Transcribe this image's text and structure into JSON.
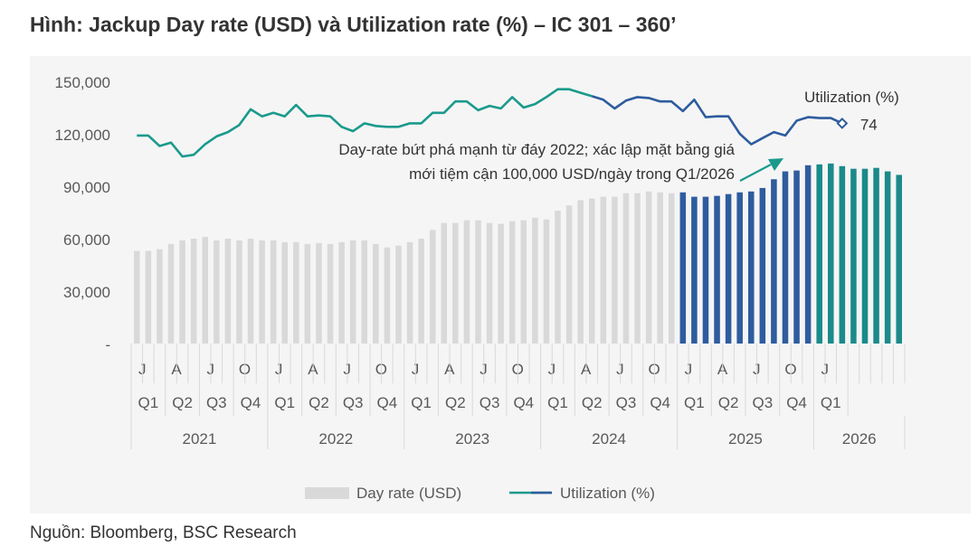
{
  "title": "Hình: Jackup Day rate (USD) và Utilization rate (%) – IC 301 – 360’",
  "source": "Nguồn: Bloomberg, BSC Research",
  "colors": {
    "bar_past": "#d9d9d9",
    "bar_2025": "#2e5c9e",
    "bar_2026": "#1b8a8a",
    "line_early": "#1a9a8c",
    "line_late": "#2e5c9e",
    "axis_text": "#595959",
    "divider": "#d9d9d9"
  },
  "chart_data": {
    "type": "bar+line",
    "title": "",
    "ylim": [
      0,
      150000
    ],
    "yticks": [
      "-",
      "30,000",
      "60,000",
      "90,000",
      "120,000",
      "150,000"
    ],
    "ytick_values": [
      0,
      30000,
      60000,
      90000,
      120000,
      150000
    ],
    "years": [
      "2021",
      "2022",
      "2023",
      "2024",
      "2025",
      "2026"
    ],
    "quarters": [
      "Q1",
      "Q2",
      "Q3",
      "Q4",
      "Q1",
      "Q2",
      "Q3",
      "Q4",
      "Q1",
      "Q2",
      "Q3",
      "Q4",
      "Q1",
      "Q2",
      "Q3",
      "Q4",
      "Q1",
      "Q2",
      "Q3",
      "Q4",
      "Q1"
    ],
    "month_letters": [
      "J",
      "A",
      "J",
      "O",
      "J",
      "A",
      "J",
      "O",
      "J",
      "A",
      "J",
      "O",
      "J",
      "A",
      "J",
      "O",
      "J",
      "A",
      "J",
      "O",
      "J"
    ],
    "bar_series": {
      "name": "Day rate (USD)",
      "values": [
        53000,
        53000,
        54000,
        57000,
        59000,
        60000,
        61000,
        59000,
        60000,
        59000,
        60000,
        59000,
        59000,
        58000,
        58000,
        57000,
        57500,
        57000,
        58000,
        59000,
        59000,
        57000,
        55000,
        56000,
        58000,
        60000,
        65000,
        69000,
        69000,
        70500,
        70500,
        69000,
        68500,
        70000,
        70500,
        72000,
        71000,
        76000,
        79000,
        82000,
        83000,
        84000,
        84000,
        86000,
        86000,
        87000,
        86500,
        86000,
        86500,
        84000,
        84000,
        84500,
        85500,
        86500,
        87000,
        89000,
        94000,
        98500,
        99000,
        102000,
        102500,
        103000,
        101500,
        100000,
        100000,
        100500,
        98500,
        96500
      ],
      "colors_by_year": {
        "2021": "past",
        "2022": "past",
        "2023": "past",
        "2024": "past",
        "2025": "2025",
        "2026": "2026"
      }
    },
    "line_series": {
      "name": "Utilization (%)",
      "annotation_label": "Utilization (%)",
      "last_value_label": "74",
      "values": [
        119000,
        119000,
        113000,
        115000,
        107000,
        108000,
        114000,
        118500,
        121000,
        125000,
        134000,
        130000,
        132000,
        130000,
        136500,
        130000,
        130500,
        130000,
        124000,
        121500,
        126000,
        124500,
        124000,
        124000,
        126000,
        126000,
        132000,
        132000,
        138500,
        138500,
        133500,
        136000,
        134500,
        141000,
        135000,
        137000,
        141000,
        145500,
        145500,
        143500,
        141500,
        139500,
        134500,
        139000,
        141000,
        140500,
        138500,
        138500,
        133000,
        139500,
        129500,
        130000,
        130000,
        120000,
        114000,
        117500,
        121000,
        119000,
        127500,
        129500,
        129000,
        129000,
        126000
      ]
    },
    "annotation": [
      "Day-rate bứt phá mạnh từ đáy 2022; xác lập mặt bằng giá",
      "mới tiệm cận 100,000 USD/ngày trong Q1/2026"
    ],
    "legend_position": "bottom"
  }
}
